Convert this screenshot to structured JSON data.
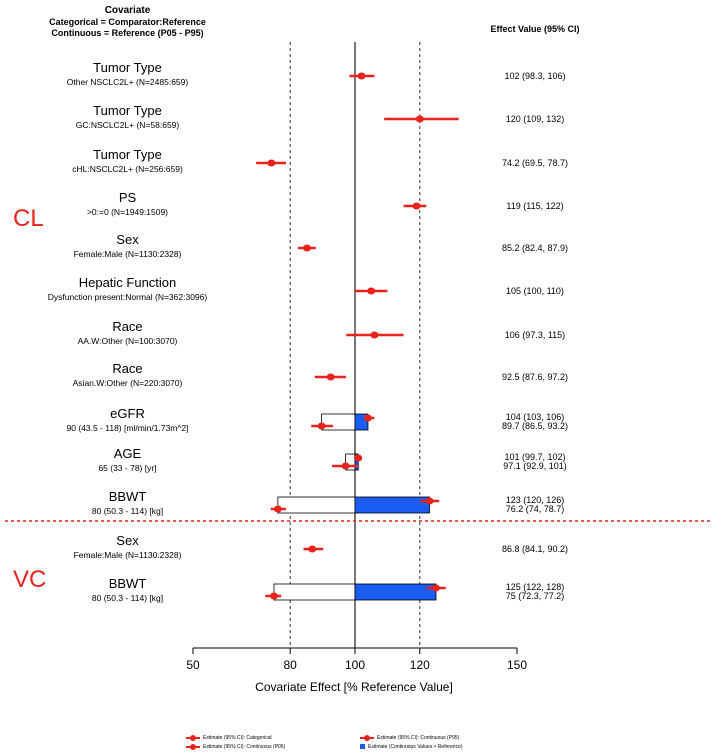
{
  "header": {
    "covariate_title": "Covariate",
    "covariate_sub1": "Categorical = Comparator:Reference",
    "covariate_sub2": "Continuous = Reference (P05 - P95)",
    "effect_title": "Effect Value (95% CI)"
  },
  "sections": [
    "CL",
    "VC"
  ],
  "chart_data": {
    "type": "forest",
    "xlabel": "Covariate Effect [% Reference Value]",
    "xlim": [
      50,
      150
    ],
    "xticks": [
      50,
      80,
      100,
      120,
      150
    ],
    "reference_line": 100,
    "dashed_lines": [
      80,
      120
    ],
    "colors": {
      "estimate": "#e8231c",
      "bar": "#1b5cf2"
    },
    "rows": [
      {
        "section": "CL",
        "label": "Tumor Type",
        "sub": "Other NSCLC2L+ (N=2485:659)",
        "kind": "cat",
        "est": 102,
        "lo": 98.3,
        "hi": 106,
        "text": "102 (98.3, 106)"
      },
      {
        "section": "CL",
        "label": "Tumor Type",
        "sub": "GC:NSCLC2L+ (N=58:659)",
        "kind": "cat",
        "est": 120,
        "lo": 109,
        "hi": 132,
        "text": "120 (109, 132)"
      },
      {
        "section": "CL",
        "label": "Tumor Type",
        "sub": "cHL:NSCLC2L+ (N=256:659)",
        "kind": "cat",
        "est": 74.2,
        "lo": 69.5,
        "hi": 78.7,
        "text": "74.2 (69.5, 78.7)"
      },
      {
        "section": "CL",
        "label": "PS",
        "sub": ">0:=0 (N=1949:1509)",
        "kind": "cat",
        "est": 119,
        "lo": 115,
        "hi": 122,
        "text": "119 (115, 122)"
      },
      {
        "section": "CL",
        "label": "Sex",
        "sub": "Female:Male (N=1130:2328)",
        "kind": "cat",
        "est": 85.2,
        "lo": 82.4,
        "hi": 87.9,
        "text": "85.2 (82.4, 87.9)"
      },
      {
        "section": "CL",
        "label": "Hepatic Function",
        "sub": "Dysfunction present:Normal (N=362:3096)",
        "kind": "cat",
        "est": 105,
        "lo": 100,
        "hi": 110,
        "text": "105 (100, 110)"
      },
      {
        "section": "CL",
        "label": "Race",
        "sub": "AA.W:Other (N=100:3070)",
        "kind": "cat",
        "est": 106,
        "lo": 97.3,
        "hi": 115,
        "text": "106 (97.3, 115)"
      },
      {
        "section": "CL",
        "label": "Race",
        "sub": "Asian.W:Other (N=220:3070)",
        "kind": "cat",
        "est": 92.5,
        "lo": 87.6,
        "hi": 97.2,
        "text": "92.5 (87.6, 97.2)"
      },
      {
        "section": "CL",
        "label": "eGFR",
        "sub": "90 (43.5 - 118) [ml/min/1.73m^2]",
        "kind": "cont",
        "p95": {
          "est": 104,
          "lo": 103,
          "hi": 106
        },
        "p05": {
          "est": 89.7,
          "lo": 86.5,
          "hi": 93.2
        },
        "text1": "104 (103, 106)",
        "text2": "89.7 (86.5, 93.2)"
      },
      {
        "section": "CL",
        "label": "AGE",
        "sub": "65 (33 - 78) [yr]",
        "kind": "cont",
        "p95": {
          "est": 101,
          "lo": 99.7,
          "hi": 102
        },
        "p05": {
          "est": 97.1,
          "lo": 92.9,
          "hi": 101
        },
        "text1": "101 (99.7, 102)",
        "text2": "97.1 (92.9, 101)"
      },
      {
        "section": "CL",
        "label": "BBWT",
        "sub": "80 (50.3 - 114) [kg]",
        "kind": "cont",
        "p95": {
          "est": 123,
          "lo": 120,
          "hi": 126
        },
        "p05": {
          "est": 76.2,
          "lo": 74,
          "hi": 78.7
        },
        "text1": "123 (120, 126)",
        "text2": "76.2 (74, 78.7)"
      },
      {
        "section": "VC",
        "label": "Sex",
        "sub": "Female:Male (N=1130:2328)",
        "kind": "cat",
        "est": 86.8,
        "lo": 84.1,
        "hi": 90.2,
        "text": "86.8 (84.1, 90.2)"
      },
      {
        "section": "VC",
        "label": "BBWT",
        "sub": "80 (50.3 - 114) [kg]",
        "kind": "cont",
        "p95": {
          "est": 125,
          "lo": 122,
          "hi": 128
        },
        "p05": {
          "est": 75,
          "lo": 72.3,
          "hi": 77.2
        },
        "text1": "125 (122, 128)",
        "text2": "75 (72.3, 77.2)"
      }
    ],
    "legend": [
      {
        "key": "cat",
        "label": "Estimate (95% CI): Categorical"
      },
      {
        "key": "p95",
        "label": "Estimate (95% CI): Continuous (P95)"
      },
      {
        "key": "p05",
        "label": "Estimate (95% CI): Continuous (P05)"
      },
      {
        "key": "bar",
        "label": "Estimate (Continuous Values > Reference)"
      }
    ]
  }
}
